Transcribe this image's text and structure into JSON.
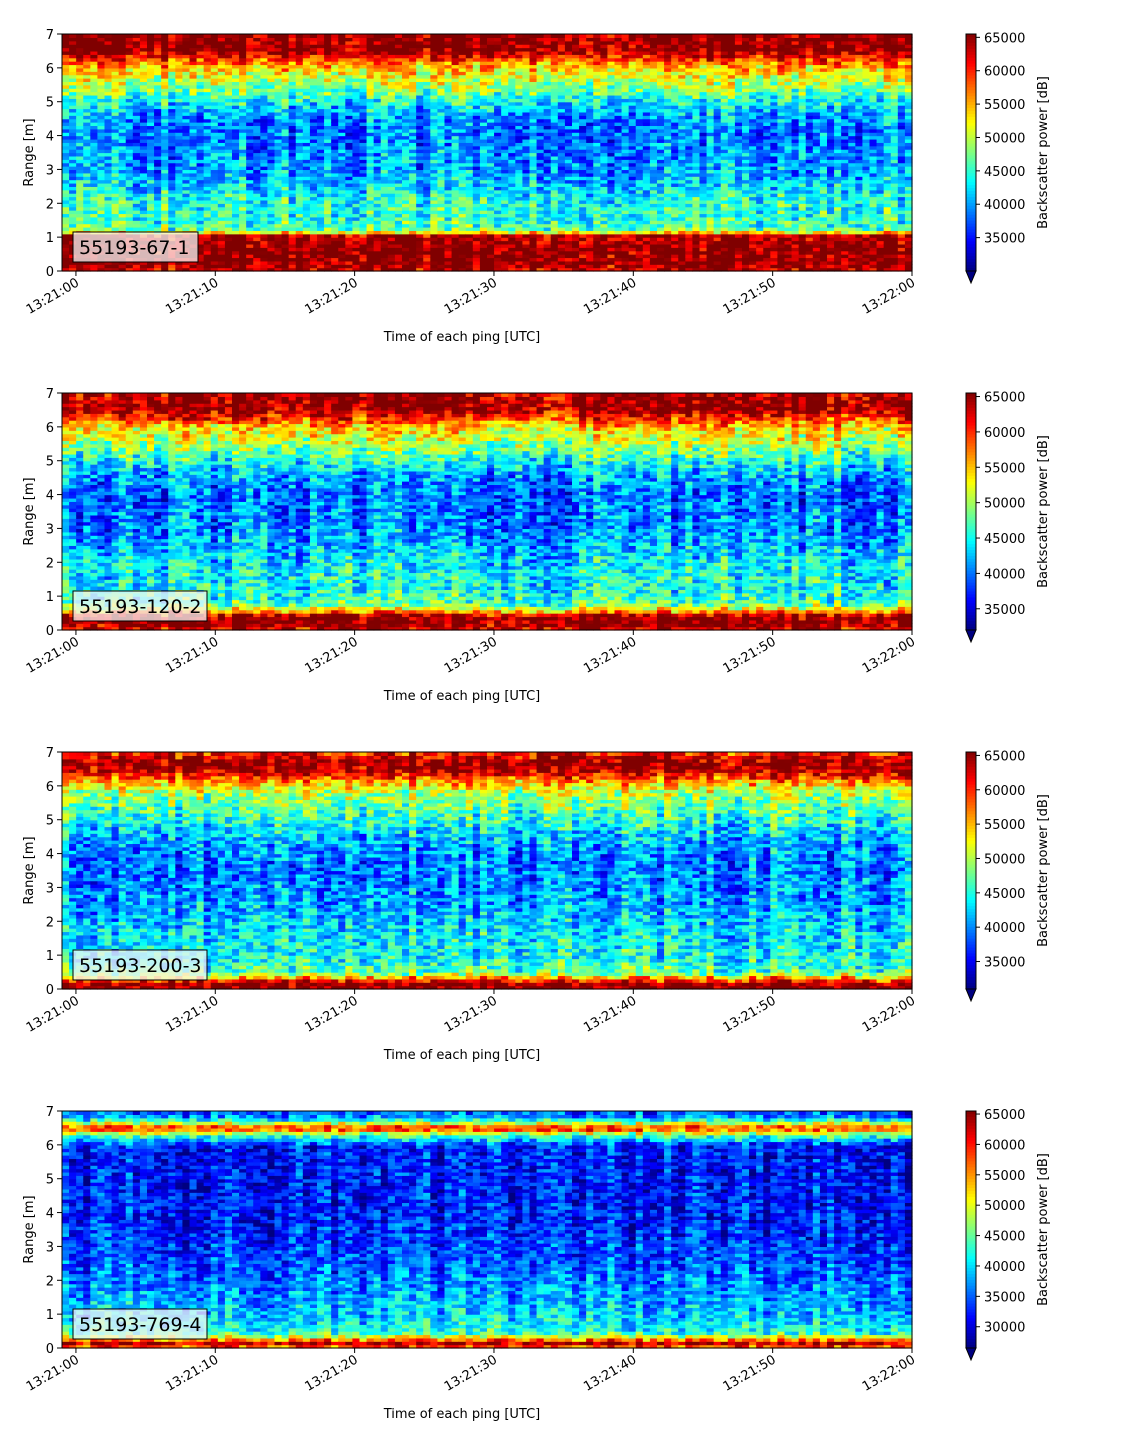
{
  "chart_data": [
    {
      "type": "heatmap",
      "label": "55193-67-1",
      "xlabel": "Time of each ping [UTC]",
      "ylabel": "Range [m]",
      "xticks": [
        "13:21:00",
        "13:21:10",
        "13:21:20",
        "13:21:30",
        "13:21:40",
        "13:21:50",
        "13:22:00"
      ],
      "xlim": [
        "13:20:59",
        "13:22:00"
      ],
      "ylim": [
        0,
        7
      ],
      "yticks": [
        0,
        1,
        2,
        3,
        4,
        5,
        6,
        7
      ],
      "colorbar": {
        "label": "Backscatter power [dB]",
        "min": 30000,
        "max": 65500,
        "ticks": [
          35000,
          40000,
          45000,
          50000,
          55000,
          60000,
          65000
        ],
        "extend": "min",
        "colormap": "jet"
      },
      "profile": {
        "range_m": [
          0.0,
          0.25,
          0.5,
          0.8,
          1.05,
          1.2,
          1.5,
          2.0,
          2.5,
          3.0,
          3.5,
          4.0,
          4.5,
          5.0,
          5.3,
          5.6,
          6.0,
          6.3,
          6.5,
          7.0
        ],
        "backscatter": [
          63000,
          65500,
          65500,
          65500,
          64000,
          47000,
          45000,
          44500,
          42000,
          40000,
          39500,
          38500,
          39500,
          43000,
          47000,
          50000,
          54000,
          60000,
          65500,
          65500
        ]
      }
    },
    {
      "type": "heatmap",
      "label": "55193-120-2",
      "xlabel": "Time of each ping [UTC]",
      "ylabel": "Range [m]",
      "xticks": [
        "13:21:00",
        "13:21:10",
        "13:21:20",
        "13:21:30",
        "13:21:40",
        "13:21:50",
        "13:22:00"
      ],
      "xlim": [
        "13:20:59",
        "13:22:00"
      ],
      "ylim": [
        0,
        7
      ],
      "yticks": [
        0,
        1,
        2,
        3,
        4,
        5,
        6,
        7
      ],
      "colorbar": {
        "label": "Backscatter power [dB]",
        "min": 32000,
        "max": 65500,
        "ticks": [
          35000,
          40000,
          45000,
          50000,
          55000,
          60000,
          65000
        ],
        "extend": "min",
        "colormap": "jet"
      },
      "profile": {
        "range_m": [
          0.0,
          0.2,
          0.4,
          0.6,
          0.8,
          1.2,
          1.6,
          2.0,
          2.5,
          3.0,
          3.5,
          4.0,
          4.5,
          5.0,
          5.3,
          5.6,
          6.0,
          6.3,
          6.6,
          7.0
        ],
        "backscatter": [
          62000,
          65500,
          65500,
          54000,
          47000,
          45000,
          44500,
          44000,
          42000,
          40500,
          40000,
          39500,
          41000,
          45000,
          48000,
          51000,
          54000,
          61000,
          65500,
          64000
        ]
      }
    },
    {
      "type": "heatmap",
      "label": "55193-200-3",
      "xlabel": "Time of each ping [UTC]",
      "ylabel": "Range [m]",
      "xticks": [
        "13:21:00",
        "13:21:10",
        "13:21:20",
        "13:21:30",
        "13:21:40",
        "13:21:50",
        "13:22:00"
      ],
      "xlim": [
        "13:20:59",
        "13:22:00"
      ],
      "ylim": [
        0,
        7
      ],
      "yticks": [
        0,
        1,
        2,
        3,
        4,
        5,
        6,
        7
      ],
      "colorbar": {
        "label": "Backscatter power [dB]",
        "min": 31000,
        "max": 65500,
        "ticks": [
          35000,
          40000,
          45000,
          50000,
          55000,
          60000,
          65000
        ],
        "extend": "min",
        "colormap": "jet"
      },
      "profile": {
        "range_m": [
          0.0,
          0.15,
          0.3,
          0.5,
          0.8,
          1.2,
          1.6,
          2.0,
          2.5,
          3.0,
          3.5,
          4.0,
          4.5,
          5.0,
          5.4,
          5.8,
          6.1,
          6.4,
          6.7,
          7.0
        ],
        "backscatter": [
          65500,
          65500,
          58000,
          47000,
          45000,
          44000,
          43500,
          42500,
          41000,
          40000,
          39500,
          40000,
          42000,
          45000,
          47500,
          50000,
          55000,
          63000,
          65500,
          60000
        ]
      }
    },
    {
      "type": "heatmap",
      "label": "55193-769-4",
      "xlabel": "Time of each ping [UTC]",
      "ylabel": "Range [m]",
      "xticks": [
        "13:21:00",
        "13:21:10",
        "13:21:20",
        "13:21:30",
        "13:21:40",
        "13:21:50",
        "13:22:00"
      ],
      "xlim": [
        "13:20:59",
        "13:22:00"
      ],
      "ylim": [
        0,
        7
      ],
      "yticks": [
        0,
        1,
        2,
        3,
        4,
        5,
        6,
        7
      ],
      "colorbar": {
        "label": "Backscatter power [dB]",
        "min": 26500,
        "max": 65500,
        "ticks": [
          30000,
          35000,
          40000,
          45000,
          50000,
          55000,
          60000,
          65000
        ],
        "extend": "min",
        "colormap": "jet"
      },
      "profile": {
        "range_m": [
          0.0,
          0.1,
          0.2,
          0.3,
          0.45,
          0.7,
          1.0,
          1.5,
          2.0,
          2.5,
          3.0,
          3.5,
          4.0,
          4.5,
          5.0,
          5.5,
          6.0,
          6.3,
          6.5,
          6.8,
          7.0
        ],
        "backscatter": [
          50000,
          65500,
          60000,
          52000,
          43000,
          40500,
          39000,
          37500,
          36000,
          34500,
          33500,
          32500,
          32000,
          32000,
          32000,
          31500,
          32000,
          45000,
          60000,
          38000,
          34000
        ]
      }
    }
  ]
}
